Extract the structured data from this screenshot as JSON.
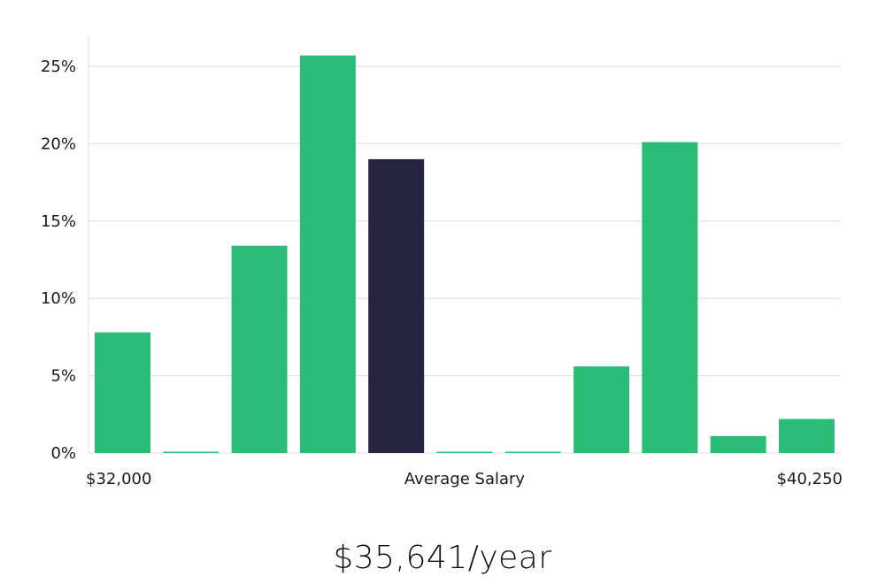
{
  "chart_data": {
    "type": "bar",
    "x_axis": {
      "left_label": "$32,000",
      "center_label": "Average Salary",
      "right_label": "$40,250"
    },
    "y_axis": {
      "ticks": [
        "0%",
        "5%",
        "10%",
        "15%",
        "20%",
        "25%"
      ],
      "tick_values": [
        0,
        5,
        10,
        15,
        20,
        25
      ],
      "ylim": [
        0,
        27
      ]
    },
    "values": [
      7.8,
      0.05,
      13.4,
      25.7,
      19.0,
      0.05,
      0.05,
      5.6,
      20.1,
      1.1,
      2.2
    ],
    "highlight_index": 4,
    "colors": {
      "bar": "#2bbd77",
      "highlight": "#272442",
      "grid": "#dcdcdc",
      "axis": "#e2e2e2"
    },
    "grid": true
  },
  "summary": {
    "salary_text": "$35,641/year"
  }
}
